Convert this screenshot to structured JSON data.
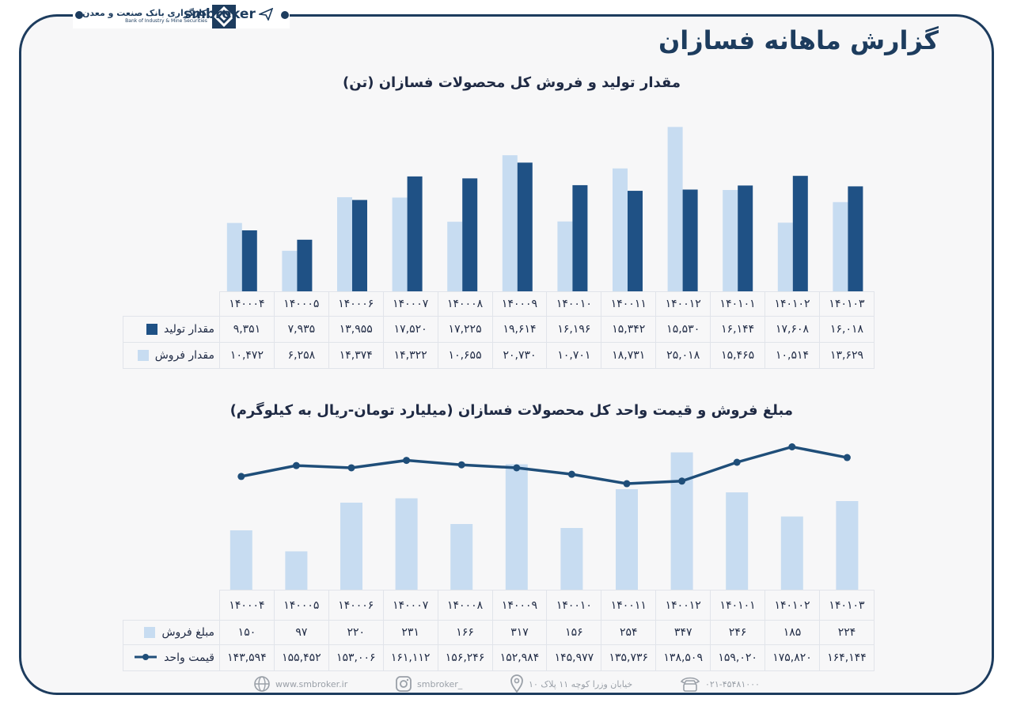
{
  "header": {
    "bank_name": "کارگزاری بانک صنعت و معدن",
    "bank_name_en": "Bank of Industry & Mine Securities",
    "brand": "smbroker",
    "page_title": "گزارش ماهانه فسازان"
  },
  "chart_data": [
    {
      "type": "bar",
      "title": "مقدار تولید و فروش کل محصولات فسازان (تن)",
      "categories": [
        "۱۴۰۰۰۴",
        "۱۴۰۰۰۵",
        "۱۴۰۰۰۶",
        "۱۴۰۰۰۷",
        "۱۴۰۰۰۸",
        "۱۴۰۰۰۹",
        "۱۴۰۰۱۰",
        "۱۴۰۰۱۱",
        "۱۴۰۰۱۲",
        "۱۴۰۱۰۱",
        "۱۴۰۱۰۲",
        "۱۴۰۱۰۳"
      ],
      "series": [
        {
          "name": "مقدار تولید",
          "color": "#1f5185",
          "values": [
            9351,
            7935,
            13955,
            17520,
            17225,
            19614,
            16196,
            15342,
            15530,
            16144,
            17608,
            16018
          ],
          "labels": [
            "۹,۳۵۱",
            "۷,۹۳۵",
            "۱۳,۹۵۵",
            "۱۷,۵۲۰",
            "۱۷,۲۲۵",
            "۱۹,۶۱۴",
            "۱۶,۱۹۶",
            "۱۵,۳۴۲",
            "۱۵,۵۳۰",
            "۱۶,۱۴۴",
            "۱۷,۶۰۸",
            "۱۶,۰۱۸"
          ]
        },
        {
          "name": "مقدار فروش",
          "color": "#c7dcf1",
          "values": [
            10472,
            6258,
            14374,
            14322,
            10655,
            20730,
            10701,
            18731,
            25018,
            15465,
            10514,
            13629
          ],
          "labels": [
            "۱۰,۴۷۲",
            "۶,۲۵۸",
            "۱۴,۳۷۴",
            "۱۴,۳۲۲",
            "۱۰,۶۵۵",
            "۲۰,۷۳۰",
            "۱۰,۷۰۱",
            "۱۸,۷۳۱",
            "۲۵,۰۱۸",
            "۱۵,۴۶۵",
            "۱۰,۵۱۴",
            "۱۳,۶۲۹"
          ]
        }
      ],
      "ylim": [
        0,
        26500
      ],
      "grid": false,
      "legend": "data-table"
    },
    {
      "type": "bar+line",
      "title": "مبلغ فروش و قیمت واحد کل محصولات فسازان (میلیارد تومان-ریال به کیلوگرم)",
      "categories": [
        "۱۴۰۰۰۴",
        "۱۴۰۰۰۵",
        "۱۴۰۰۰۶",
        "۱۴۰۰۰۷",
        "۱۴۰۰۰۸",
        "۱۴۰۰۰۹",
        "۱۴۰۰۱۰",
        "۱۴۰۰۱۱",
        "۱۴۰۰۱۲",
        "۱۴۰۱۰۱",
        "۱۴۰۱۰۲",
        "۱۴۰۱۰۳"
      ],
      "series": [
        {
          "name": "مبلغ فروش",
          "kind": "bar",
          "color": "#c7dcf1",
          "values": [
            150,
            97,
            220,
            231,
            166,
            317,
            156,
            254,
            347,
            246,
            185,
            224
          ],
          "labels": [
            "۱۵۰",
            "۹۷",
            "۲۲۰",
            "۲۳۱",
            "۱۶۶",
            "۳۱۷",
            "۱۵۶",
            "۲۵۴",
            "۳۴۷",
            "۲۴۶",
            "۱۸۵",
            "۲۲۴"
          ]
        },
        {
          "name": "قیمت واحد",
          "kind": "line",
          "color": "#1f4e79",
          "values": [
            143594,
            155452,
            153006,
            161112,
            156246,
            152984,
            145977,
            135736,
            138509,
            159020,
            175820,
            164144
          ],
          "labels": [
            "۱۴۳,۵۹۴",
            "۱۵۵,۴۵۲",
            "۱۵۳,۰۰۶",
            "۱۶۱,۱۱۲",
            "۱۵۶,۲۴۶",
            "۱۵۲,۹۸۴",
            "۱۴۵,۹۷۷",
            "۱۳۵,۷۳۶",
            "۱۳۸,۵۰۹",
            "۱۵۹,۰۲۰",
            "۱۷۵,۸۲۰",
            "۱۶۴,۱۴۴"
          ]
        }
      ],
      "grid": false,
      "legend": "data-table"
    }
  ],
  "footer": {
    "website": "www.smbroker.ir",
    "instagram": "smbroker_",
    "address": "خیابان وزرا کوچه ۱۱ پلاک ۱۰",
    "phone": "۰۲۱-۴۵۴۸۱۰۰۰"
  }
}
